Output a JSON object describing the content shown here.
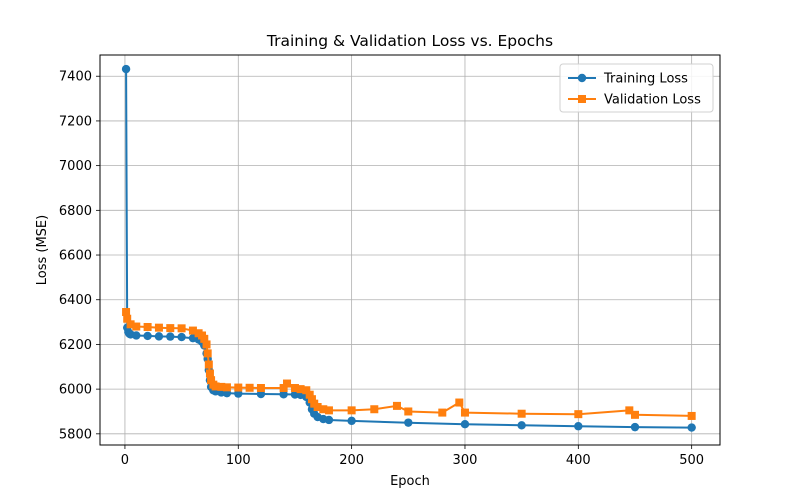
{
  "chart_data": {
    "type": "line",
    "title": "Training & Validation Loss vs. Epochs",
    "xlabel": "Epoch",
    "ylabel": "Loss (MSE)",
    "xlim": [
      -22,
      525
    ],
    "ylim": [
      5750,
      7495
    ],
    "xticks": [
      0,
      100,
      200,
      300,
      400,
      500
    ],
    "yticks": [
      5800,
      6000,
      6200,
      6400,
      6600,
      6800,
      7000,
      7200,
      7400
    ],
    "grid": true,
    "legend_position": "upper right",
    "series": [
      {
        "name": "Training Loss",
        "color": "#1f77b4",
        "marker": "circle",
        "x": [
          1,
          2,
          3,
          4,
          5,
          10,
          20,
          30,
          40,
          50,
          60,
          65,
          68,
          70,
          72,
          73,
          74,
          75,
          76,
          78,
          80,
          85,
          90,
          100,
          120,
          140,
          150,
          155,
          160,
          163,
          165,
          167,
          170,
          175,
          180,
          200,
          250,
          300,
          350,
          400,
          450,
          500
        ],
        "y": [
          7432,
          6275,
          6255,
          6248,
          6245,
          6240,
          6238,
          6236,
          6235,
          6233,
          6228,
          6222,
          6212,
          6195,
          6160,
          6135,
          6085,
          6040,
          6010,
          5995,
          5990,
          5985,
          5982,
          5980,
          5978,
          5977,
          5976,
          5974,
          5965,
          5940,
          5910,
          5890,
          5875,
          5866,
          5862,
          5858,
          5850,
          5843,
          5838,
          5834,
          5830,
          5828
        ]
      },
      {
        "name": "Validation Loss",
        "color": "#ff7f0e",
        "marker": "square",
        "x": [
          1,
          2,
          5,
          10,
          20,
          30,
          40,
          50,
          60,
          65,
          68,
          70,
          72,
          73,
          74,
          75,
          76,
          78,
          80,
          85,
          90,
          100,
          110,
          120,
          140,
          143,
          150,
          155,
          160,
          163,
          165,
          167,
          170,
          175,
          180,
          200,
          220,
          240,
          250,
          280,
          295,
          300,
          350,
          400,
          445,
          450,
          500
        ],
        "y": [
          6345,
          6315,
          6290,
          6280,
          6278,
          6275,
          6273,
          6272,
          6262,
          6250,
          6240,
          6225,
          6200,
          6160,
          6110,
          6070,
          6040,
          6020,
          6012,
          6010,
          6008,
          6007,
          6006,
          6005,
          6005,
          6025,
          6005,
          6000,
          5995,
          5975,
          5955,
          5935,
          5920,
          5910,
          5905,
          5905,
          5910,
          5925,
          5900,
          5895,
          5940,
          5895,
          5890,
          5888,
          5905,
          5885,
          5880
        ]
      }
    ]
  }
}
